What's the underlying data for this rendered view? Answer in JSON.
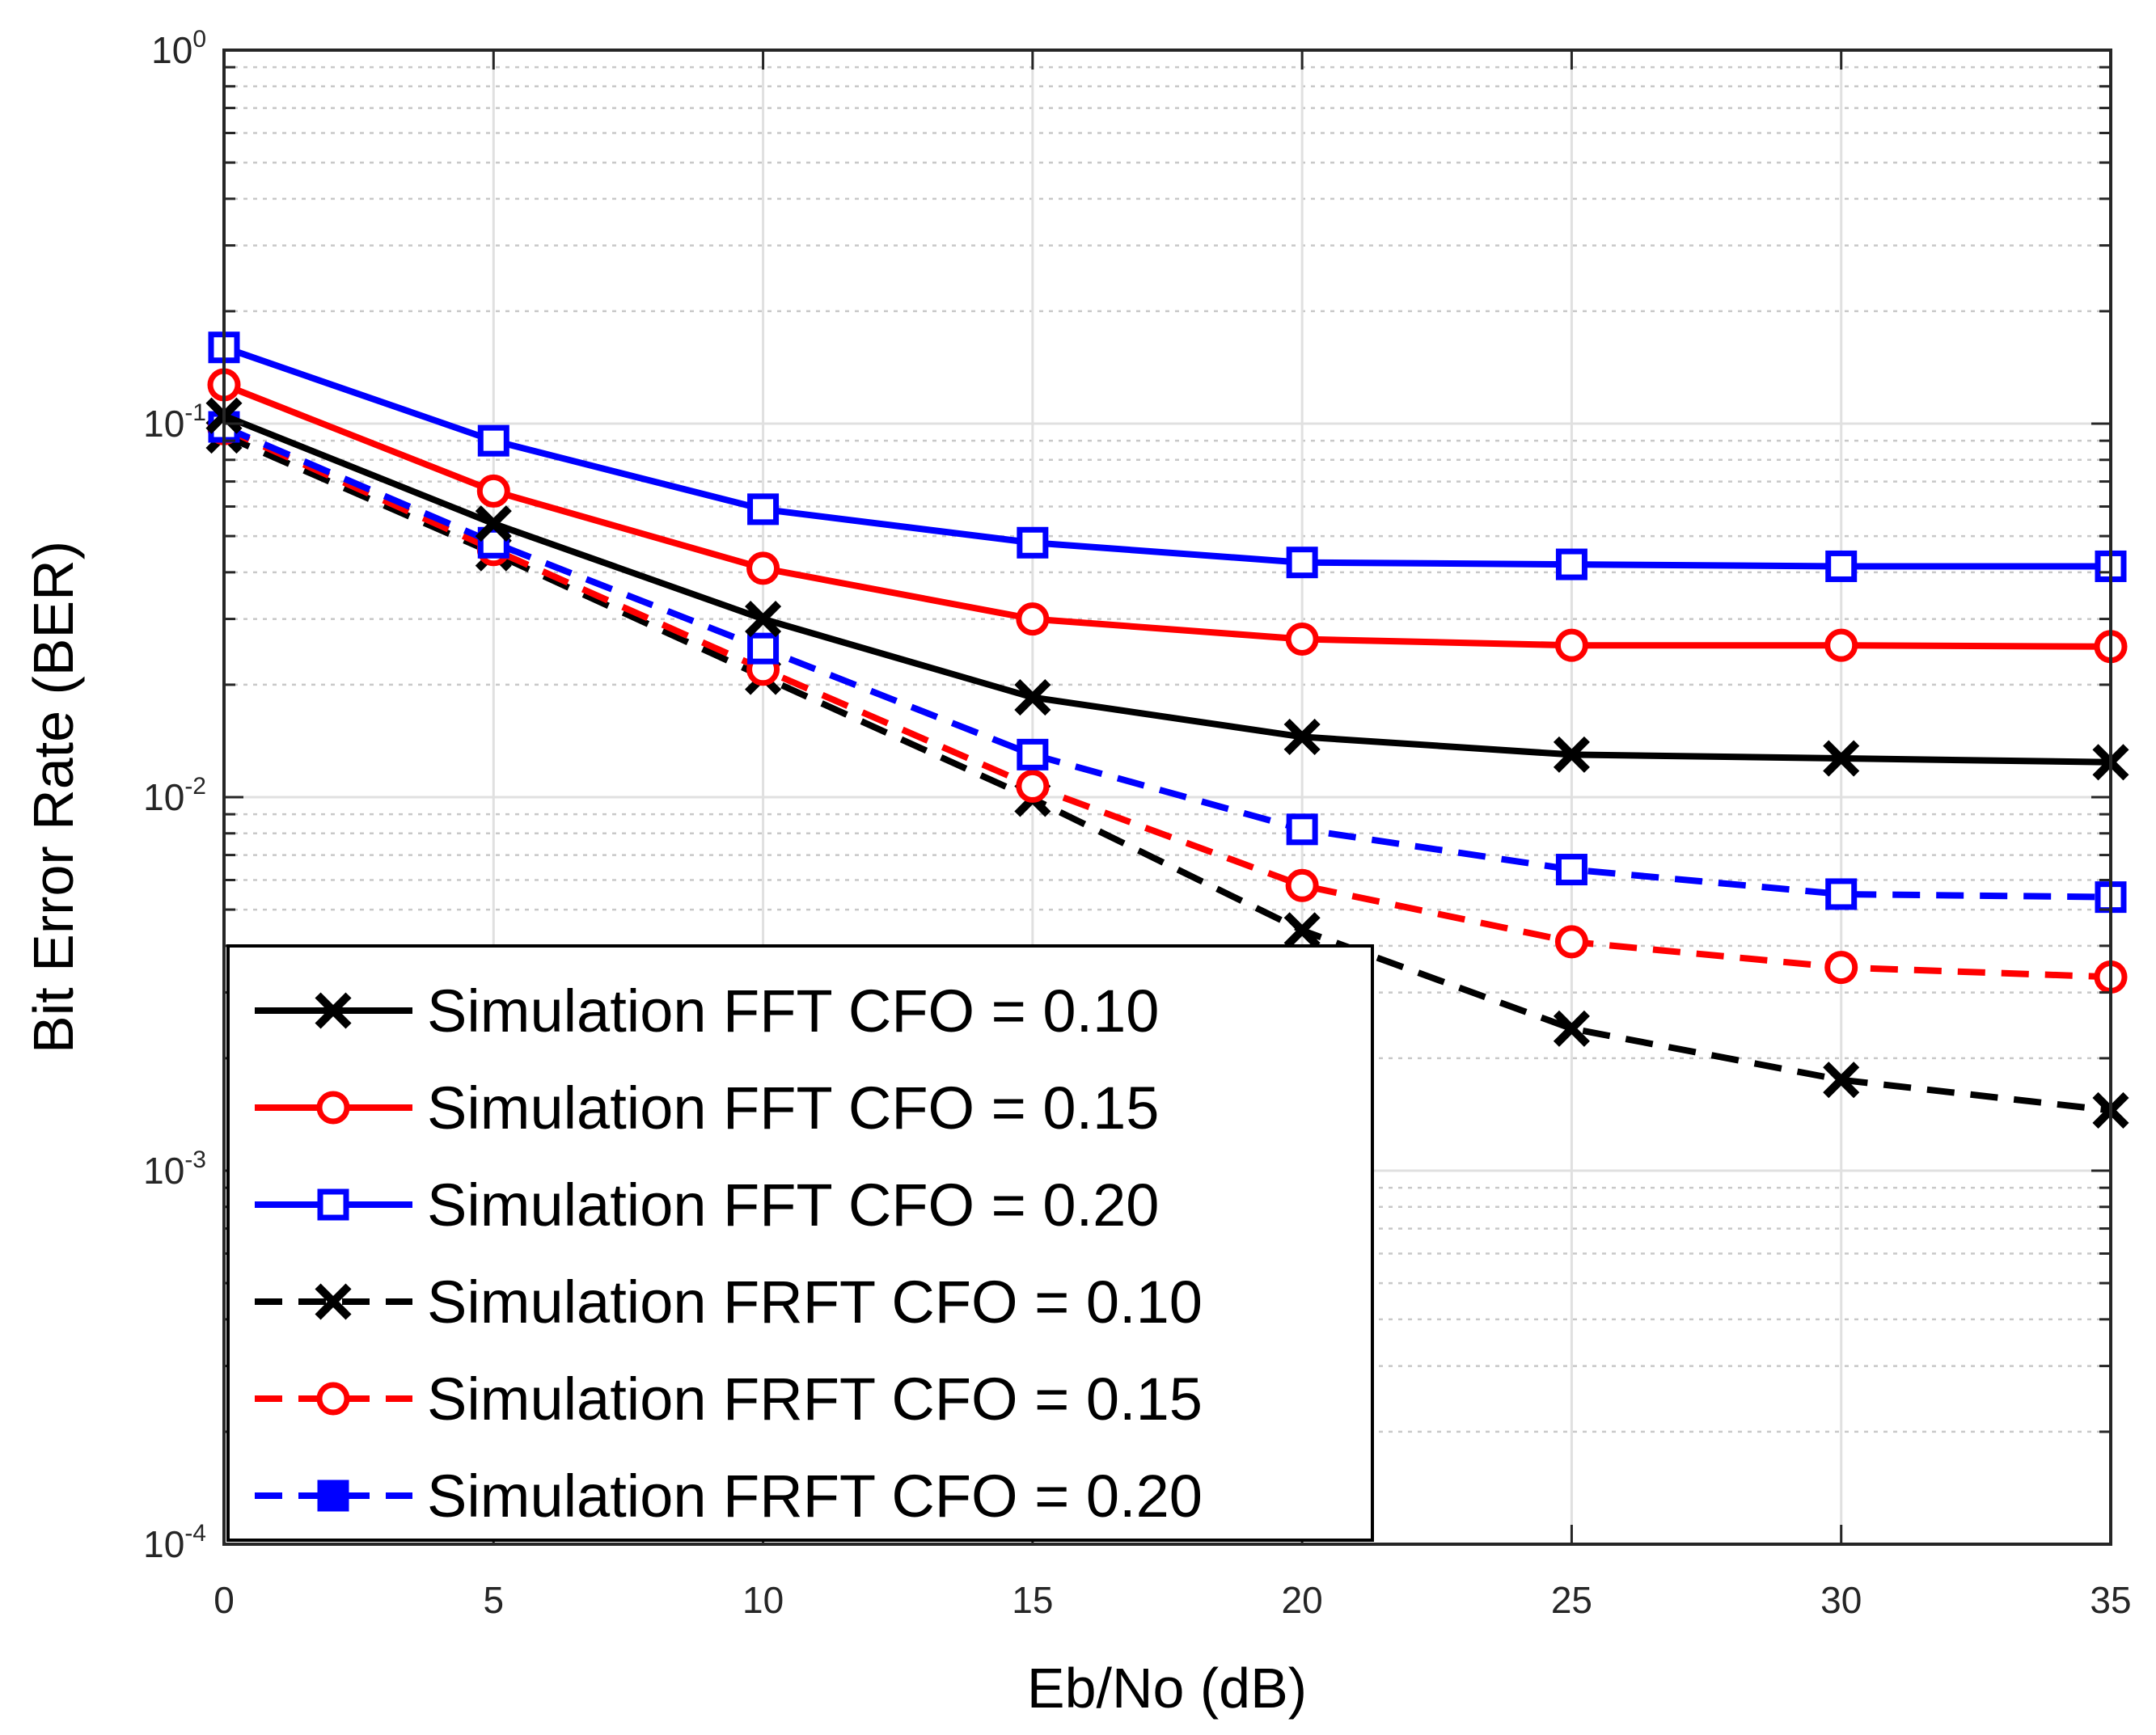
{
  "chart_data": {
    "type": "line",
    "xlabel": "Eb/No (dB)",
    "ylabel": "Bit Error Rate (BER)",
    "xlim": [
      0,
      35
    ],
    "ylim": [
      0.0001,
      1
    ],
    "yscale": "log",
    "grid": true,
    "legend_position": "bottom-left",
    "x_ticks": [
      "0",
      "5",
      "10",
      "15",
      "20",
      "25",
      "30",
      "35"
    ],
    "y_ticks": [
      {
        "base": "10",
        "exp": "0"
      },
      {
        "base": "10",
        "exp": "-1"
      },
      {
        "base": "10",
        "exp": "-2"
      },
      {
        "base": "10",
        "exp": "-3"
      },
      {
        "base": "10",
        "exp": "-4"
      }
    ],
    "x": [
      0,
      5,
      10,
      15,
      20,
      25,
      30,
      35
    ],
    "series": [
      {
        "name": "Simulation FFT CFO = 0.10",
        "color": "#000000",
        "dashed": false,
        "marker": "x",
        "values": [
          0.105,
          0.054,
          0.03,
          0.0185,
          0.0145,
          0.013,
          0.0127,
          0.0124
        ]
      },
      {
        "name": "Simulation FFT CFO = 0.15",
        "color": "#ff0000",
        "dashed": false,
        "marker": "circle",
        "values": [
          0.127,
          0.066,
          0.041,
          0.03,
          0.0265,
          0.0255,
          0.0255,
          0.0253
        ]
      },
      {
        "name": "Simulation FFT CFO = 0.20",
        "color": "#0000ff",
        "dashed": false,
        "marker": "square",
        "values": [
          0.16,
          0.09,
          0.059,
          0.048,
          0.0425,
          0.042,
          0.0415,
          0.0415
        ]
      },
      {
        "name": "Simulation FRFT CFO = 0.10",
        "color": "#000000",
        "dashed": true,
        "marker": "x",
        "values": [
          0.093,
          0.045,
          0.021,
          0.0099,
          0.0044,
          0.0024,
          0.00175,
          0.00145
        ]
      },
      {
        "name": "Simulation FRFT CFO = 0.15",
        "color": "#ff0000",
        "dashed": true,
        "marker": "circle",
        "values": [
          0.097,
          0.046,
          0.022,
          0.0107,
          0.0058,
          0.0041,
          0.0035,
          0.0033
        ]
      },
      {
        "name": "Simulation FRFT CFO = 0.20",
        "color": "#0000ff",
        "dashed": true,
        "marker": "square",
        "values": [
          0.098,
          0.048,
          0.025,
          0.013,
          0.0082,
          0.0064,
          0.0055,
          0.0054
        ]
      }
    ]
  }
}
